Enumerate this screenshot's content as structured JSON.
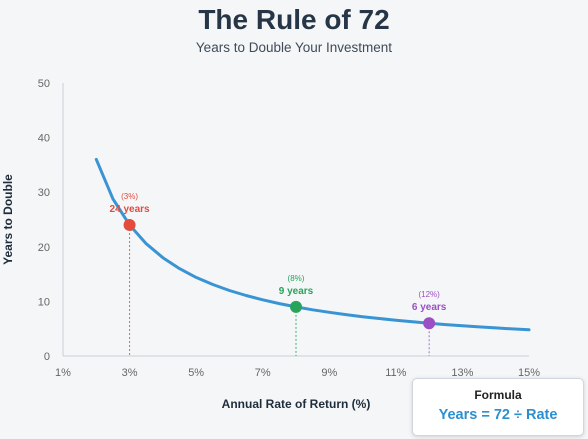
{
  "chart_data": {
    "type": "line",
    "title": "The Rule of 72",
    "subtitle": "Years to Double Your Investment",
    "xlabel": "Annual Rate of Return (%)",
    "ylabel": "Years to Double",
    "xlim": [
      1,
      15
    ],
    "ylim": [
      0,
      50
    ],
    "x_ticks": [
      1,
      3,
      5,
      7,
      9,
      11,
      13,
      15
    ],
    "x_tick_labels": [
      "1%",
      "3%",
      "5%",
      "7%",
      "9%",
      "11%",
      "13%",
      "15%"
    ],
    "y_ticks": [
      0,
      10,
      20,
      30,
      40,
      50
    ],
    "y_tick_labels": [
      "0",
      "10",
      "20",
      "30",
      "40",
      "50"
    ],
    "grid": false,
    "series": [
      {
        "color": "#3a94d4",
        "x": [
          2,
          2.5,
          3,
          3.5,
          4,
          4.5,
          5,
          5.5,
          6,
          6.5,
          7,
          7.5,
          8,
          8.5,
          9,
          9.5,
          10,
          10.5,
          11,
          11.5,
          12,
          12.5,
          13,
          13.5,
          14,
          14.5,
          15
        ],
        "y": [
          36,
          28.8,
          24,
          20.57,
          18,
          16,
          14.4,
          13.09,
          12,
          11.08,
          10.29,
          9.6,
          9,
          8.47,
          8,
          7.58,
          7.2,
          6.86,
          6.55,
          6.26,
          6,
          5.76,
          5.54,
          5.33,
          5.14,
          4.97,
          4.8
        ]
      }
    ],
    "highlights": [
      {
        "x": 3,
        "y": 24,
        "rate_label": "(3%)",
        "value_label": "24 years",
        "color": "#e34b3c"
      },
      {
        "x": 8,
        "y": 9,
        "rate_label": "(8%)",
        "value_label": "9 years",
        "color": "#27a35a"
      },
      {
        "x": 12,
        "y": 6,
        "rate_label": "(12%)",
        "value_label": "6 years",
        "color": "#9b4fc4"
      }
    ]
  },
  "formula": {
    "label": "Formula",
    "text": "Years = 72 ÷ Rate"
  }
}
